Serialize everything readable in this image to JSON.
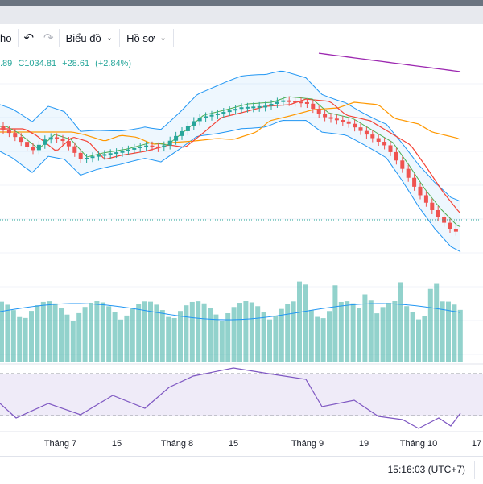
{
  "toolbar": {
    "timeframe_partial": "ho",
    "undo_icon": "undo-icon",
    "redo_icon": "redo-icon",
    "chart_type_label": "Biểu đồ",
    "profile_label": "Hồ sơ"
  },
  "legend": {
    "partial_value": ".89",
    "close": "C1034.81",
    "change": "+28.61",
    "change_pct": "(+2.84%)"
  },
  "footer": {
    "time": "15:16:03 (UTC+7)"
  },
  "colors": {
    "up": "#26a69a",
    "down": "#ef5350",
    "bb": "#2196f3",
    "ma_fast": "#4caf50",
    "ma_mid": "#f44336",
    "ma_slow": "#ff9800",
    "ma_long": "#9c27b0",
    "rsi": "#7e57c2"
  },
  "chart_data": {
    "type": "candlestick",
    "x_tick_labels": [
      "Tháng 7",
      "15",
      "Tháng 8",
      "15",
      "Tháng 9",
      "19",
      "Tháng 10",
      "17"
    ],
    "last_close": 1034.81,
    "change": 28.61,
    "change_pct": 2.84,
    "note_series": "price candles with Bollinger bands, three moving averages, volume histogram with volume MA, RSI pane with band"
  }
}
